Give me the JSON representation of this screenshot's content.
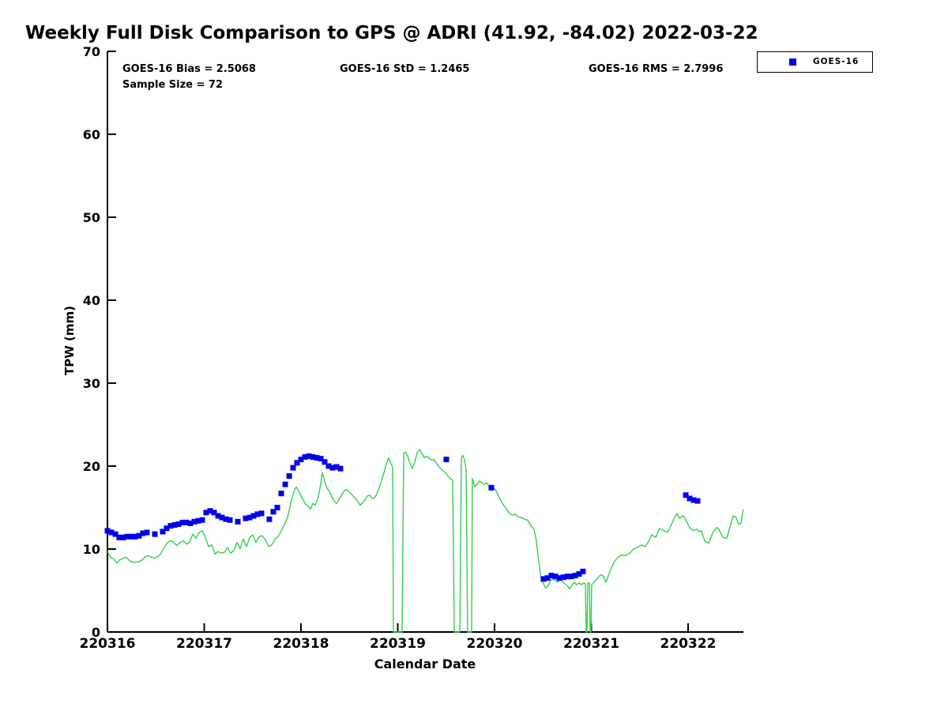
{
  "annotations": {
    "bias": "GOES-16 Bias = 2.5068",
    "std": "GOES-16 StD = 1.2465",
    "rms": "GOES-16 RMS = 2.7996",
    "sample_size": "Sample Size = 72"
  },
  "legend": {
    "label": "GOES-16",
    "marker_color": "#0000ee"
  },
  "chart_data": {
    "type": "line+scatter",
    "title": "Weekly Full Disk Comparison to GPS @ ADRI (41.92, -84.02) 2022-03-22",
    "xlabel": "Calendar Date",
    "ylabel": "TPW (mm)",
    "ylim": [
      0,
      70
    ],
    "yticks": [
      0,
      10,
      20,
      30,
      40,
      50,
      60,
      70
    ],
    "xtick_labels": [
      "220316",
      "220317",
      "220318",
      "220319",
      "220320",
      "220321",
      "220322"
    ],
    "x_unit": "days since 220316",
    "grid": false,
    "legend_position": "top-right",
    "series": [
      {
        "name": "GPS",
        "type": "line",
        "color": "#2fd24c",
        "points": [
          [
            0.0,
            9.7
          ],
          [
            0.033,
            9.0
          ],
          [
            0.065,
            8.8
          ],
          [
            0.098,
            8.3
          ],
          [
            0.131,
            8.7
          ],
          [
            0.163,
            8.9
          ],
          [
            0.196,
            9.0
          ],
          [
            0.229,
            8.6
          ],
          [
            0.261,
            8.4
          ],
          [
            0.294,
            8.4
          ],
          [
            0.327,
            8.5
          ],
          [
            0.359,
            8.7
          ],
          [
            0.392,
            9.1
          ],
          [
            0.424,
            9.2
          ],
          [
            0.457,
            9.0
          ],
          [
            0.49,
            8.9
          ],
          [
            0.522,
            9.1
          ],
          [
            0.555,
            9.5
          ],
          [
            0.588,
            10.2
          ],
          [
            0.62,
            10.8
          ],
          [
            0.653,
            11.0
          ],
          [
            0.686,
            10.8
          ],
          [
            0.718,
            10.4
          ],
          [
            0.751,
            10.8
          ],
          [
            0.784,
            11.0
          ],
          [
            0.816,
            10.6
          ],
          [
            0.849,
            10.8
          ],
          [
            0.882,
            11.8
          ],
          [
            0.914,
            11.3
          ],
          [
            0.947,
            12.0
          ],
          [
            0.98,
            12.2
          ],
          [
            1.012,
            11.4
          ],
          [
            1.045,
            10.3
          ],
          [
            1.078,
            10.5
          ],
          [
            1.11,
            9.4
          ],
          [
            1.143,
            9.7
          ],
          [
            1.176,
            9.5
          ],
          [
            1.208,
            9.6
          ],
          [
            1.241,
            10.2
          ],
          [
            1.273,
            9.5
          ],
          [
            1.306,
            9.8
          ],
          [
            1.339,
            10.8
          ],
          [
            1.371,
            10.0
          ],
          [
            1.404,
            11.2
          ],
          [
            1.437,
            10.3
          ],
          [
            1.469,
            11.4
          ],
          [
            1.502,
            11.7
          ],
          [
            1.535,
            10.8
          ],
          [
            1.567,
            11.5
          ],
          [
            1.6,
            11.6
          ],
          [
            1.633,
            11.1
          ],
          [
            1.665,
            10.3
          ],
          [
            1.698,
            10.5
          ],
          [
            1.731,
            11.2
          ],
          [
            1.763,
            11.5
          ],
          [
            1.796,
            12.2
          ],
          [
            1.829,
            13.0
          ],
          [
            1.861,
            13.8
          ],
          [
            1.894,
            15.5
          ],
          [
            1.927,
            17.0
          ],
          [
            1.951,
            17.5
          ],
          [
            1.976,
            17.0
          ],
          [
            2.0,
            16.4
          ],
          [
            2.024,
            15.9
          ],
          [
            2.049,
            15.4
          ],
          [
            2.073,
            15.2
          ],
          [
            2.098,
            14.8
          ],
          [
            2.122,
            15.5
          ],
          [
            2.147,
            15.3
          ],
          [
            2.171,
            16.0
          ],
          [
            2.196,
            17.3
          ],
          [
            2.22,
            19.2
          ],
          [
            2.245,
            18.2
          ],
          [
            2.269,
            17.3
          ],
          [
            2.294,
            17.0
          ],
          [
            2.318,
            16.3
          ],
          [
            2.343,
            15.8
          ],
          [
            2.367,
            15.5
          ],
          [
            2.392,
            15.9
          ],
          [
            2.416,
            16.5
          ],
          [
            2.441,
            16.9
          ],
          [
            2.465,
            17.2
          ],
          [
            2.49,
            17.0
          ],
          [
            2.514,
            16.7
          ],
          [
            2.539,
            16.4
          ],
          [
            2.563,
            16.1
          ],
          [
            2.588,
            15.7
          ],
          [
            2.612,
            15.3
          ],
          [
            2.637,
            15.6
          ],
          [
            2.661,
            15.9
          ],
          [
            2.686,
            16.4
          ],
          [
            2.71,
            16.5
          ],
          [
            2.735,
            16.1
          ],
          [
            2.759,
            16.2
          ],
          [
            2.784,
            16.6
          ],
          [
            2.808,
            17.4
          ],
          [
            2.833,
            18.3
          ],
          [
            2.857,
            19.2
          ],
          [
            2.882,
            20.2
          ],
          [
            2.906,
            21.0
          ],
          [
            2.931,
            20.3
          ],
          [
            2.947,
            19.8
          ],
          [
            2.955,
            0.0
          ],
          [
            3.045,
            0.0
          ],
          [
            3.061,
            21.5
          ],
          [
            3.078,
            21.7
          ],
          [
            3.102,
            21.2
          ],
          [
            3.127,
            20.3
          ],
          [
            3.151,
            19.7
          ],
          [
            3.176,
            20.5
          ],
          [
            3.2,
            21.6
          ],
          [
            3.224,
            22.0
          ],
          [
            3.249,
            21.6
          ],
          [
            3.273,
            21.0
          ],
          [
            3.298,
            21.2
          ],
          [
            3.322,
            21.0
          ],
          [
            3.347,
            20.7
          ],
          [
            3.371,
            20.8
          ],
          [
            3.396,
            20.4
          ],
          [
            3.42,
            20.0
          ],
          [
            3.445,
            19.7
          ],
          [
            3.469,
            19.4
          ],
          [
            3.494,
            19.2
          ],
          [
            3.518,
            18.8
          ],
          [
            3.543,
            18.5
          ],
          [
            3.567,
            18.3
          ],
          [
            3.584,
            0.0
          ],
          [
            3.641,
            0.0
          ],
          [
            3.657,
            21.0
          ],
          [
            3.673,
            21.3
          ],
          [
            3.69,
            20.8
          ],
          [
            3.706,
            19.5
          ],
          [
            3.722,
            0.0
          ],
          [
            3.763,
            0.0
          ],
          [
            3.771,
            18.5
          ],
          [
            3.796,
            17.5
          ],
          [
            3.82,
            17.8
          ],
          [
            3.845,
            18.2
          ],
          [
            3.869,
            18.0
          ],
          [
            3.894,
            17.8
          ],
          [
            3.918,
            18.0
          ],
          [
            3.943,
            17.6
          ],
          [
            3.967,
            17.2
          ],
          [
            3.992,
            17.4
          ],
          [
            4.016,
            17.0
          ],
          [
            4.049,
            16.2
          ],
          [
            4.082,
            15.5
          ],
          [
            4.114,
            15.0
          ],
          [
            4.147,
            14.4
          ],
          [
            4.18,
            14.1
          ],
          [
            4.212,
            14.2
          ],
          [
            4.245,
            13.9
          ],
          [
            4.278,
            13.8
          ],
          [
            4.31,
            13.6
          ],
          [
            4.343,
            13.5
          ],
          [
            4.376,
            12.8
          ],
          [
            4.408,
            12.4
          ],
          [
            4.433,
            11.0
          ],
          [
            4.457,
            8.5
          ],
          [
            4.482,
            6.5
          ],
          [
            4.506,
            5.8
          ],
          [
            4.531,
            5.3
          ],
          [
            4.555,
            5.6
          ],
          [
            4.58,
            6.2
          ],
          [
            4.604,
            6.4
          ],
          [
            4.629,
            6.2
          ],
          [
            4.653,
            6.0
          ],
          [
            4.678,
            6.3
          ],
          [
            4.702,
            6.1
          ],
          [
            4.727,
            5.8
          ],
          [
            4.751,
            5.6
          ],
          [
            4.776,
            5.2
          ],
          [
            4.8,
            5.6
          ],
          [
            4.824,
            6.0
          ],
          [
            4.849,
            5.7
          ],
          [
            4.873,
            5.9
          ],
          [
            4.898,
            5.7
          ],
          [
            4.922,
            5.9
          ],
          [
            4.939,
            5.8
          ],
          [
            4.947,
            0.0
          ],
          [
            4.955,
            0.0
          ],
          [
            4.963,
            5.9
          ],
          [
            4.98,
            5.9
          ],
          [
            4.988,
            0.0
          ],
          [
            4.996,
            0.0
          ],
          [
            5.004,
            5.7
          ],
          [
            5.029,
            6.0
          ],
          [
            5.053,
            6.3
          ],
          [
            5.078,
            6.7
          ],
          [
            5.102,
            6.9
          ],
          [
            5.127,
            6.7
          ],
          [
            5.151,
            6.0
          ],
          [
            5.176,
            6.8
          ],
          [
            5.192,
            7.3
          ],
          [
            5.233,
            8.4
          ],
          [
            5.273,
            9.0
          ],
          [
            5.314,
            9.3
          ],
          [
            5.355,
            9.2
          ],
          [
            5.396,
            9.5
          ],
          [
            5.437,
            10.0
          ],
          [
            5.478,
            10.2
          ],
          [
            5.518,
            10.5
          ],
          [
            5.559,
            10.3
          ],
          [
            5.6,
            11.1
          ],
          [
            5.624,
            11.7
          ],
          [
            5.665,
            11.4
          ],
          [
            5.706,
            12.5
          ],
          [
            5.747,
            12.2
          ],
          [
            5.788,
            12.0
          ],
          [
            5.829,
            13.0
          ],
          [
            5.869,
            14.0
          ],
          [
            5.886,
            14.3
          ],
          [
            5.91,
            13.7
          ],
          [
            5.951,
            14.0
          ],
          [
            5.976,
            13.5
          ],
          [
            6.016,
            12.6
          ],
          [
            6.057,
            12.2
          ],
          [
            6.09,
            12.4
          ],
          [
            6.114,
            12.1
          ],
          [
            6.139,
            12.2
          ],
          [
            6.171,
            11.0
          ],
          [
            6.212,
            10.7
          ],
          [
            6.253,
            11.9
          ],
          [
            6.294,
            12.6
          ],
          [
            6.318,
            12.4
          ],
          [
            6.359,
            11.4
          ],
          [
            6.4,
            11.3
          ],
          [
            6.441,
            13.0
          ],
          [
            6.465,
            14.0
          ],
          [
            6.498,
            13.8
          ],
          [
            6.522,
            13.0
          ],
          [
            6.547,
            13.1
          ],
          [
            6.571,
            14.8
          ]
        ]
      },
      {
        "name": "GOES-16",
        "type": "scatter",
        "color": "#0000ee",
        "points": [
          [
            0.0,
            12.2
          ],
          [
            0.041,
            12.0
          ],
          [
            0.082,
            11.8
          ],
          [
            0.122,
            11.4
          ],
          [
            0.163,
            11.4
          ],
          [
            0.204,
            11.5
          ],
          [
            0.245,
            11.5
          ],
          [
            0.286,
            11.5
          ],
          [
            0.327,
            11.6
          ],
          [
            0.367,
            11.9
          ],
          [
            0.408,
            12.0
          ],
          [
            0.49,
            11.8
          ],
          [
            0.571,
            12.1
          ],
          [
            0.612,
            12.5
          ],
          [
            0.653,
            12.8
          ],
          [
            0.694,
            12.9
          ],
          [
            0.735,
            13.0
          ],
          [
            0.776,
            13.2
          ],
          [
            0.816,
            13.2
          ],
          [
            0.857,
            13.1
          ],
          [
            0.898,
            13.3
          ],
          [
            0.939,
            13.4
          ],
          [
            0.98,
            13.5
          ],
          [
            1.02,
            14.4
          ],
          [
            1.061,
            14.6
          ],
          [
            1.102,
            14.4
          ],
          [
            1.143,
            14.0
          ],
          [
            1.184,
            13.8
          ],
          [
            1.224,
            13.6
          ],
          [
            1.265,
            13.5
          ],
          [
            1.347,
            13.3
          ],
          [
            1.429,
            13.7
          ],
          [
            1.469,
            13.8
          ],
          [
            1.51,
            14.0
          ],
          [
            1.551,
            14.2
          ],
          [
            1.592,
            14.3
          ],
          [
            1.673,
            13.6
          ],
          [
            1.714,
            14.5
          ],
          [
            1.755,
            15.0
          ],
          [
            1.796,
            16.7
          ],
          [
            1.837,
            17.8
          ],
          [
            1.878,
            18.8
          ],
          [
            1.918,
            19.8
          ],
          [
            1.959,
            20.4
          ],
          [
            2.0,
            20.8
          ],
          [
            2.041,
            21.1
          ],
          [
            2.082,
            21.2
          ],
          [
            2.122,
            21.1
          ],
          [
            2.163,
            21.0
          ],
          [
            2.204,
            20.9
          ],
          [
            2.245,
            20.5
          ],
          [
            2.286,
            20.0
          ],
          [
            2.327,
            19.8
          ],
          [
            2.367,
            19.9
          ],
          [
            2.408,
            19.7
          ],
          [
            3.502,
            20.8
          ],
          [
            3.967,
            17.4
          ],
          [
            4.506,
            6.4
          ],
          [
            4.547,
            6.5
          ],
          [
            4.588,
            6.8
          ],
          [
            4.629,
            6.7
          ],
          [
            4.669,
            6.5
          ],
          [
            4.71,
            6.6
          ],
          [
            4.751,
            6.7
          ],
          [
            4.792,
            6.7
          ],
          [
            4.833,
            6.8
          ],
          [
            4.873,
            7.0
          ],
          [
            4.914,
            7.3
          ],
          [
            5.976,
            16.5
          ],
          [
            6.016,
            16.1
          ],
          [
            6.057,
            15.9
          ],
          [
            6.098,
            15.8
          ]
        ]
      }
    ]
  }
}
